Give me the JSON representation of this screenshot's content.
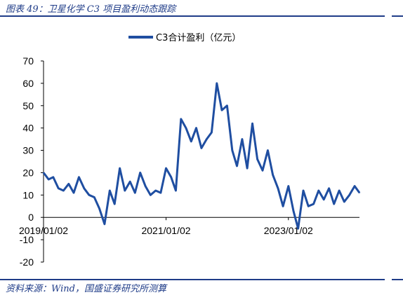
{
  "header": {
    "caption": "图表 49：卫星化学 C3 项目盈利动态跟踪"
  },
  "footer": {
    "source": "资料来源：Wind，国盛证券研究所测算"
  },
  "colors": {
    "series": "#1f4ea1",
    "accent": "#1f3c88",
    "axis": "#000000"
  },
  "chart_data": {
    "type": "line",
    "title": "",
    "xlabel": "",
    "ylabel": "",
    "ylim": [
      -20,
      70
    ],
    "yticks": [
      -20,
      -10,
      0,
      10,
      20,
      30,
      40,
      50,
      60,
      70
    ],
    "xticks": [
      "2019/01/02",
      "2021/01/02",
      "2023/01/02"
    ],
    "grid": false,
    "legend": "top-center",
    "series": [
      {
        "name": "C3合计盈利（亿元）",
        "x": [
          "2019/01/02",
          "2019/02/01",
          "2019/03/01",
          "2019/04/01",
          "2019/05/01",
          "2019/06/01",
          "2019/07/01",
          "2019/08/01",
          "2019/09/01",
          "2019/10/01",
          "2019/11/01",
          "2019/12/01",
          "2020/01/01",
          "2020/02/01",
          "2020/03/01",
          "2020/04/01",
          "2020/05/01",
          "2020/06/01",
          "2020/07/01",
          "2020/08/01",
          "2020/09/01",
          "2020/10/01",
          "2020/11/01",
          "2020/12/01",
          "2021/01/02",
          "2021/02/01",
          "2021/03/01",
          "2021/04/01",
          "2021/05/01",
          "2021/06/01",
          "2021/07/01",
          "2021/08/01",
          "2021/09/01",
          "2021/10/01",
          "2021/11/01",
          "2021/12/01",
          "2022/01/01",
          "2022/02/01",
          "2022/03/01",
          "2022/04/01",
          "2022/05/01",
          "2022/06/01",
          "2022/07/01",
          "2022/08/01",
          "2022/09/01",
          "2022/10/01",
          "2022/11/01",
          "2022/12/01",
          "2023/01/02",
          "2023/02/01",
          "2023/03/01",
          "2023/04/01",
          "2023/05/01",
          "2023/06/01",
          "2023/07/01",
          "2023/08/01",
          "2023/09/01",
          "2023/10/01",
          "2023/11/01",
          "2023/12/01",
          "2024/01/01",
          "2024/02/01",
          "2024/03/01"
        ],
        "values": [
          20,
          17,
          18,
          13,
          12,
          15,
          11,
          18,
          13,
          10,
          9,
          4,
          -3,
          12,
          6,
          22,
          12,
          16,
          11,
          20,
          14,
          10,
          12,
          11,
          22,
          18,
          12,
          44,
          40,
          34,
          40,
          31,
          35,
          38,
          60,
          48,
          50,
          30,
          23,
          35,
          22,
          42,
          26,
          21,
          30,
          19,
          13,
          5,
          14,
          3,
          -5,
          12,
          5,
          6,
          12,
          8,
          13,
          6,
          12,
          7,
          10,
          14,
          11
        ]
      }
    ]
  }
}
